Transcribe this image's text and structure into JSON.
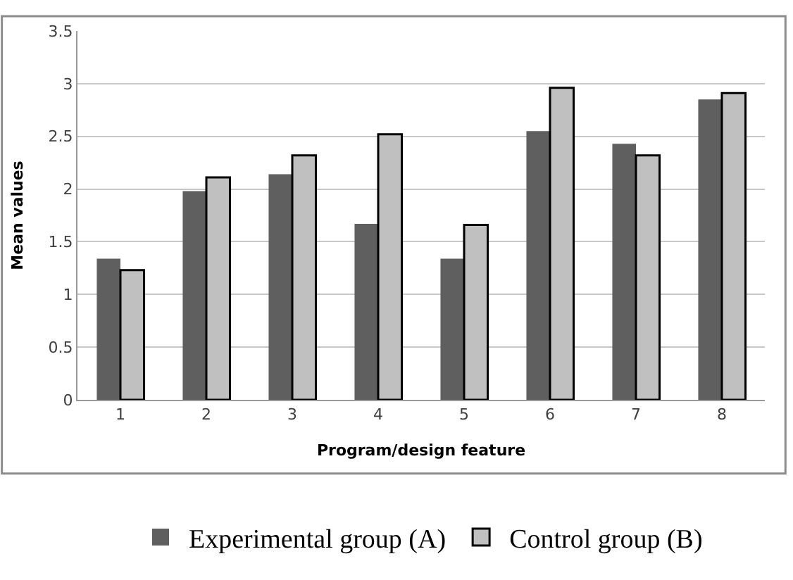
{
  "chart_data": {
    "type": "bar",
    "xlabel": "Program/design feature",
    "ylabel": "Mean values",
    "categories": [
      "1",
      "2",
      "3",
      "4",
      "5",
      "6",
      "7",
      "8"
    ],
    "series": [
      {
        "name": "Experimental group (A)",
        "color": "#5f5f5f",
        "values": [
          1.34,
          1.98,
          2.14,
          1.67,
          1.34,
          2.55,
          2.43,
          2.85
        ]
      },
      {
        "name": "Control group (B)",
        "color": "#c0c0c0",
        "values": [
          1.23,
          2.11,
          2.32,
          2.52,
          1.66,
          2.96,
          2.32,
          2.91
        ]
      }
    ],
    "ylim": [
      0,
      3.5
    ],
    "yticks": [
      0,
      0.5,
      1,
      1.5,
      2,
      2.5,
      3,
      3.5
    ],
    "grid": "y",
    "legend": "bottom"
  }
}
